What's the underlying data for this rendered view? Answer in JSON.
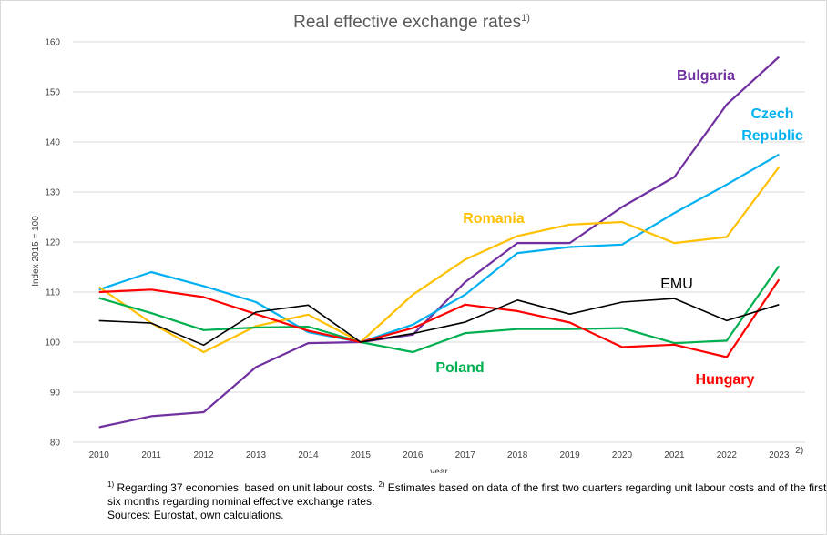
{
  "chart_data": {
    "type": "line",
    "title": "Real effective exchange rates",
    "title_superscript": "1)",
    "xlabel": "year",
    "ylabel": "Index 2015 = 100",
    "ylim": [
      80,
      160
    ],
    "yticks": [
      80,
      90,
      100,
      110,
      120,
      130,
      140,
      150,
      160
    ],
    "x": [
      "2010",
      "2011",
      "2012",
      "2013",
      "2014",
      "2015",
      "2016",
      "2017",
      "2018",
      "2019",
      "2020",
      "2021",
      "2022",
      "2023"
    ],
    "last_x_note": "2)",
    "grid": true,
    "legend": "direct labels",
    "series": [
      {
        "name": "Bulgaria",
        "color": "#7030a0",
        "label": [
          "Bulgaria"
        ],
        "values": [
          83.0,
          85.2,
          86.0,
          95.0,
          99.8,
          100.0,
          101.5,
          112.0,
          119.8,
          119.8,
          127.0,
          133.0,
          147.5,
          157.0
        ]
      },
      {
        "name": "Czech Republic",
        "color": "#00b0f0",
        "label": [
          "Czech",
          "Republic"
        ],
        "values": [
          110.5,
          114.0,
          111.2,
          108.0,
          102.0,
          100.0,
          103.5,
          109.5,
          117.8,
          119.0,
          119.5,
          125.8,
          131.5,
          137.5
        ]
      },
      {
        "name": "Romania",
        "color": "#ffc000",
        "label": [
          "Romania"
        ],
        "values": [
          111.0,
          103.8,
          98.0,
          103.2,
          105.5,
          100.0,
          109.5,
          116.5,
          121.2,
          123.5,
          124.0,
          119.8,
          121.0,
          135.0
        ]
      },
      {
        "name": "EMU",
        "color": "#000000",
        "label": [
          "EMU"
        ],
        "values": [
          104.3,
          103.8,
          99.4,
          106.0,
          107.4,
          100.0,
          101.7,
          104.0,
          108.4,
          105.6,
          108.0,
          108.7,
          104.3,
          107.5
        ]
      },
      {
        "name": "Poland",
        "color": "#00b050",
        "label": [
          "Poland"
        ],
        "values": [
          108.8,
          105.8,
          102.4,
          102.9,
          103.1,
          100.0,
          98.0,
          101.8,
          102.6,
          102.6,
          102.8,
          99.8,
          100.3,
          115.2
        ]
      },
      {
        "name": "Hungary",
        "color": "#ff0000",
        "label": [
          "Hungary"
        ],
        "values": [
          110.0,
          110.5,
          109.0,
          105.6,
          102.3,
          100.0,
          102.8,
          107.5,
          106.2,
          103.9,
          99.0,
          99.5,
          97.0,
          112.5
        ]
      }
    ]
  },
  "footnotes": {
    "note1_marker": "1)",
    "note1_text": " Regarding 37 economies, based on unit labour costs. ",
    "note2_marker": "2)",
    "note2_text_line1": " Estimates based on data of the first two quarters regarding unit labour costs and of the first",
    "note2_text_line2": "six months regarding nominal effective exchange rates.",
    "sources": "Sources: Eurostat, own calculations."
  }
}
